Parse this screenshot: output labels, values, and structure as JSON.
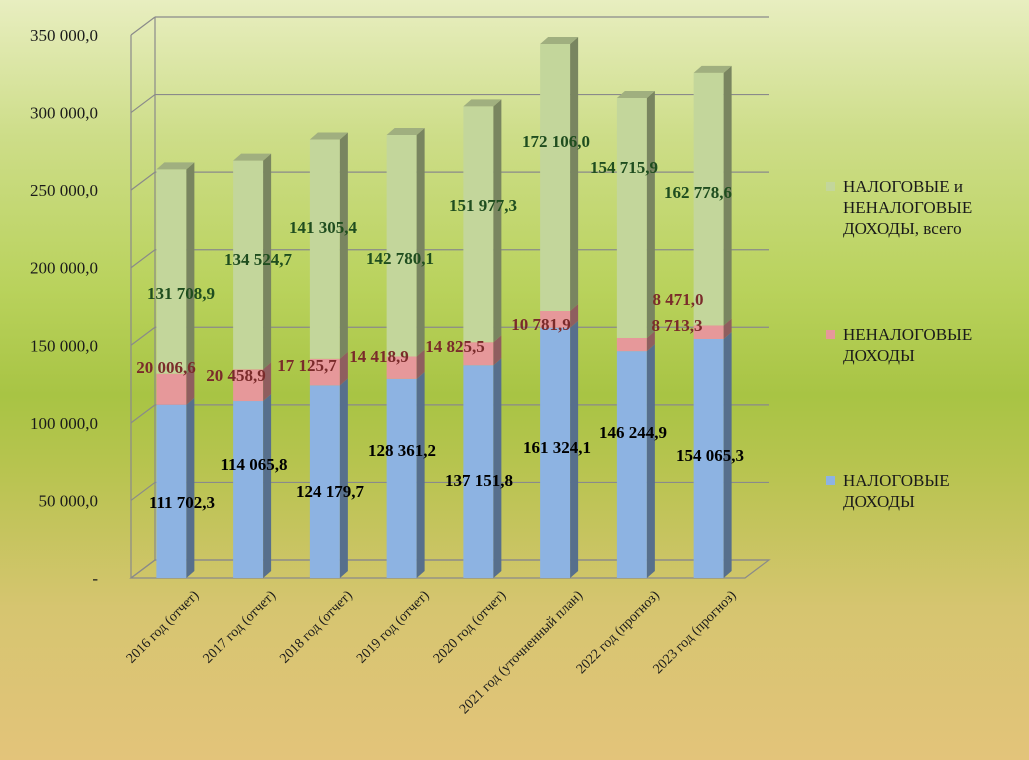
{
  "chart_data": {
    "type": "bar",
    "stacked": true,
    "style": "3d",
    "categories": [
      "2016 год (отчет)",
      "2017 год (отчет)",
      "2018 год (отчет)",
      "2019 год (отчет)",
      "2020 год  (отчет)",
      "2021 год  (уточненный план)",
      "2022 год  (прогноз)",
      "2023 год  (прогноз)"
    ],
    "series": [
      {
        "name": "НАЛОГОВЫЕ ДОХОДЫ",
        "color": "#8db3e2",
        "label_color": "#000000",
        "values": [
          111702.3,
          114065.8,
          124179.7,
          128361.2,
          137151.8,
          161324.1,
          146244.9,
          154065.3
        ],
        "labels": [
          "111 702,3",
          "114 065,8",
          "124 179,7",
          "128 361,2",
          "137 151,8",
          "161 324,1",
          "146 244,9",
          "154 065,3"
        ]
      },
      {
        "name": "НЕНАЛОГОВЫЕ ДОХОДЫ",
        "color": "#e6989a",
        "label_color": "#7a2b2b",
        "values": [
          20006.6,
          20458.9,
          17125.7,
          14418.9,
          14825.5,
          10781.9,
          8471.0,
          8713.3
        ],
        "labels": [
          "20 006,6",
          "20 458,9",
          "17 125,7",
          "14 418,9",
          "14 825,5",
          "10 781,9",
          "8 471,0",
          "8 713,3"
        ]
      },
      {
        "name": "НАЛОГОВЫЕ и НЕНАЛОГОВЫЕ ДОХОДЫ, всего",
        "color": "#c3d69b",
        "label_color": "#1f4d1f",
        "values": [
          131708.9,
          134524.7,
          141305.4,
          142780.1,
          151977.3,
          172106.0,
          154715.9,
          162778.6
        ],
        "labels": [
          "131 708,9",
          "134 524,7",
          "141 305,4",
          "142 780,1",
          "151 977,3",
          "172 106,0",
          "154 715,9",
          "162 778,6"
        ]
      }
    ],
    "y_ticks": [
      "-",
      "50 000,0",
      "100 000,0",
      "150 000,0",
      "200 000,0",
      "250 000,0",
      "300 000,0",
      "350 000,0"
    ],
    "ylim": [
      0,
      350000
    ],
    "grid": true,
    "legend_position": "right"
  },
  "legend": [
    {
      "label": "НАЛОГОВЫЕ и\nНЕНАЛОГОВЫЕ\nДОХОДЫ, всего",
      "color": "#c3d69b"
    },
    {
      "label": "НЕНАЛОГОВЫЕ\nДОХОДЫ",
      "color": "#e6989a"
    },
    {
      "label": "НАЛОГОВЫЕ\nДОХОДЫ",
      "color": "#8db3e2"
    }
  ]
}
